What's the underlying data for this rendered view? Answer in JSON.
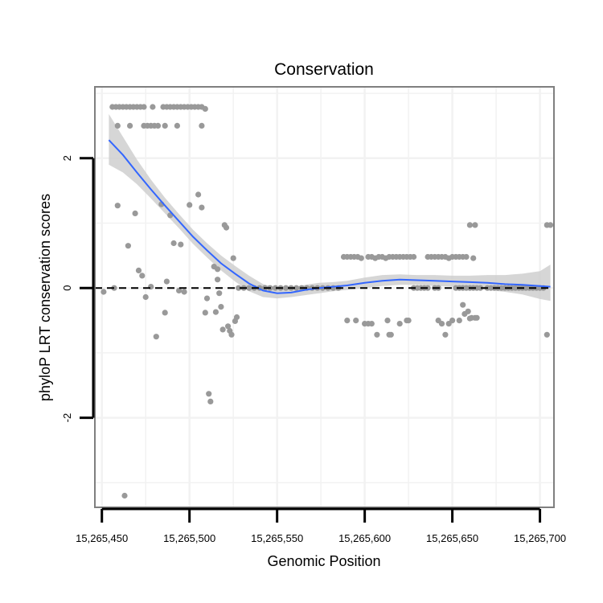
{
  "chart_data": {
    "type": "scatter",
    "title": "Conservation",
    "xlabel": "Genomic Position",
    "ylabel": "phyloP LRT conservation scores",
    "xlim": [
      15265446,
      15265708
    ],
    "ylim": [
      -3.38,
      3.1
    ],
    "xticks": [
      15265450,
      15265500,
      15265550,
      15265600,
      15265650,
      15265700
    ],
    "xtick_labels": [
      "15,265,450",
      "15,265,500",
      "15,265,550",
      "15,265,600",
      "15,265,650",
      "15,265,700"
    ],
    "yticks": [
      -2,
      0,
      2
    ],
    "ytick_labels": [
      "-2",
      "0",
      "2"
    ],
    "reference_line": {
      "y": 0,
      "style": "dashed",
      "color": "#000000"
    },
    "colors": {
      "points": "#999999",
      "smooth_line": "#3366ff",
      "confidence_band": "#cccccc",
      "panel_border": "#7f7f7f",
      "grid": "#f2f2f2"
    },
    "points": [
      {
        "x": 15265456,
        "y": 2.79
      },
      {
        "x": 15265458,
        "y": 2.79
      },
      {
        "x": 15265460,
        "y": 2.79
      },
      {
        "x": 15265462,
        "y": 2.79
      },
      {
        "x": 15265464,
        "y": 2.79
      },
      {
        "x": 15265466,
        "y": 2.79
      },
      {
        "x": 15265468,
        "y": 2.79
      },
      {
        "x": 15265470,
        "y": 2.79
      },
      {
        "x": 15265472,
        "y": 2.79
      },
      {
        "x": 15265474,
        "y": 2.79
      },
      {
        "x": 15265479,
        "y": 2.79
      },
      {
        "x": 15265485,
        "y": 2.79
      },
      {
        "x": 15265487,
        "y": 2.79
      },
      {
        "x": 15265489,
        "y": 2.79
      },
      {
        "x": 15265491,
        "y": 2.79
      },
      {
        "x": 15265493,
        "y": 2.79
      },
      {
        "x": 15265495,
        "y": 2.79
      },
      {
        "x": 15265497,
        "y": 2.79
      },
      {
        "x": 15265499,
        "y": 2.79
      },
      {
        "x": 15265501,
        "y": 2.79
      },
      {
        "x": 15265503,
        "y": 2.79
      },
      {
        "x": 15265505,
        "y": 2.79
      },
      {
        "x": 15265507,
        "y": 2.79
      },
      {
        "x": 15265509,
        "y": 2.76
      },
      {
        "x": 15265459,
        "y": 2.5
      },
      {
        "x": 15265466,
        "y": 2.5
      },
      {
        "x": 15265474,
        "y": 2.5
      },
      {
        "x": 15265476,
        "y": 2.5
      },
      {
        "x": 15265478,
        "y": 2.5
      },
      {
        "x": 15265480,
        "y": 2.5
      },
      {
        "x": 15265482,
        "y": 2.5
      },
      {
        "x": 15265486,
        "y": 2.5
      },
      {
        "x": 15265493,
        "y": 2.5
      },
      {
        "x": 15265507,
        "y": 2.5
      },
      {
        "x": 15265459,
        "y": 1.27
      },
      {
        "x": 15265465,
        "y": 0.65
      },
      {
        "x": 15265469,
        "y": 1.15
      },
      {
        "x": 15265471,
        "y": 0.27
      },
      {
        "x": 15265473,
        "y": 0.19
      },
      {
        "x": 15265475,
        "y": -0.14
      },
      {
        "x": 15265478,
        "y": 0.02
      },
      {
        "x": 15265481,
        "y": -0.75
      },
      {
        "x": 15265484,
        "y": 1.29
      },
      {
        "x": 15265486,
        "y": -0.38
      },
      {
        "x": 15265487,
        "y": 0.1
      },
      {
        "x": 15265489,
        "y": 1.12
      },
      {
        "x": 15265491,
        "y": 0.69
      },
      {
        "x": 15265494,
        "y": -0.04
      },
      {
        "x": 15265495,
        "y": 0.67
      },
      {
        "x": 15265497,
        "y": -0.06
      },
      {
        "x": 15265500,
        "y": 1.28
      },
      {
        "x": 15265505,
        "y": 1.44
      },
      {
        "x": 15265507,
        "y": 1.24
      },
      {
        "x": 15265509,
        "y": -0.38
      },
      {
        "x": 15265510,
        "y": -0.16
      },
      {
        "x": 15265511,
        "y": -1.63
      },
      {
        "x": 15265512,
        "y": -1.75
      },
      {
        "x": 15265514,
        "y": 0.33
      },
      {
        "x": 15265515,
        "y": -0.37
      },
      {
        "x": 15265516,
        "y": 0.29
      },
      {
        "x": 15265516,
        "y": 0.13
      },
      {
        "x": 15265517,
        "y": -0.08
      },
      {
        "x": 15265518,
        "y": -0.29
      },
      {
        "x": 15265519,
        "y": -0.64
      },
      {
        "x": 15265520,
        "y": 0.97
      },
      {
        "x": 15265521,
        "y": 0.93
      },
      {
        "x": 15265522,
        "y": -0.59
      },
      {
        "x": 15265523,
        "y": -0.66
      },
      {
        "x": 15265524,
        "y": -0.72
      },
      {
        "x": 15265525,
        "y": 0.46
      },
      {
        "x": 15265526,
        "y": -0.51
      },
      {
        "x": 15265527,
        "y": -0.45
      },
      {
        "x": 15265451,
        "y": -0.06
      },
      {
        "x": 15265457,
        "y": 0.0
      },
      {
        "x": 15265463,
        "y": -3.2
      },
      {
        "x": 15265528,
        "y": 0.0
      },
      {
        "x": 15265531,
        "y": 0.0
      },
      {
        "x": 15265534,
        "y": 0.0
      },
      {
        "x": 15265537,
        "y": 0.0
      },
      {
        "x": 15265540,
        "y": 0.0
      },
      {
        "x": 15265543,
        "y": 0.0
      },
      {
        "x": 15265546,
        "y": 0.0
      },
      {
        "x": 15265549,
        "y": 0.0
      },
      {
        "x": 15265552,
        "y": 0.0
      },
      {
        "x": 15265555,
        "y": 0.0
      },
      {
        "x": 15265558,
        "y": 0.0
      },
      {
        "x": 15265561,
        "y": 0.0
      },
      {
        "x": 15265564,
        "y": 0.0
      },
      {
        "x": 15265567,
        "y": 0.0
      },
      {
        "x": 15265570,
        "y": 0.0
      },
      {
        "x": 15265573,
        "y": 0.0
      },
      {
        "x": 15265576,
        "y": 0.0
      },
      {
        "x": 15265579,
        "y": 0.0
      },
      {
        "x": 15265582,
        "y": 0.0
      },
      {
        "x": 15265585,
        "y": 0.0
      },
      {
        "x": 15265588,
        "y": 0.48
      },
      {
        "x": 15265590,
        "y": 0.48
      },
      {
        "x": 15265592,
        "y": 0.48
      },
      {
        "x": 15265594,
        "y": 0.48
      },
      {
        "x": 15265596,
        "y": 0.48
      },
      {
        "x": 15265598,
        "y": 0.46
      },
      {
        "x": 15265602,
        "y": 0.48
      },
      {
        "x": 15265604,
        "y": 0.48
      },
      {
        "x": 15265606,
        "y": 0.46
      },
      {
        "x": 15265608,
        "y": 0.48
      },
      {
        "x": 15265610,
        "y": 0.48
      },
      {
        "x": 15265612,
        "y": 0.46
      },
      {
        "x": 15265614,
        "y": 0.48
      },
      {
        "x": 15265616,
        "y": 0.48
      },
      {
        "x": 15265618,
        "y": 0.48
      },
      {
        "x": 15265620,
        "y": 0.48
      },
      {
        "x": 15265622,
        "y": 0.48
      },
      {
        "x": 15265624,
        "y": 0.48
      },
      {
        "x": 15265626,
        "y": 0.48
      },
      {
        "x": 15265628,
        "y": 0.48
      },
      {
        "x": 15265636,
        "y": 0.48
      },
      {
        "x": 15265638,
        "y": 0.48
      },
      {
        "x": 15265640,
        "y": 0.48
      },
      {
        "x": 15265642,
        "y": 0.48
      },
      {
        "x": 15265644,
        "y": 0.48
      },
      {
        "x": 15265646,
        "y": 0.48
      },
      {
        "x": 15265648,
        "y": 0.46
      },
      {
        "x": 15265650,
        "y": 0.48
      },
      {
        "x": 15265652,
        "y": 0.48
      },
      {
        "x": 15265654,
        "y": 0.48
      },
      {
        "x": 15265656,
        "y": 0.48
      },
      {
        "x": 15265658,
        "y": 0.48
      },
      {
        "x": 15265662,
        "y": 0.46
      },
      {
        "x": 15265590,
        "y": -0.5
      },
      {
        "x": 15265595,
        "y": -0.5
      },
      {
        "x": 15265600,
        "y": -0.55
      },
      {
        "x": 15265602,
        "y": -0.55
      },
      {
        "x": 15265604,
        "y": -0.55
      },
      {
        "x": 15265607,
        "y": -0.72
      },
      {
        "x": 15265613,
        "y": -0.5
      },
      {
        "x": 15265614,
        "y": -0.72
      },
      {
        "x": 15265615,
        "y": -0.72
      },
      {
        "x": 15265620,
        "y": -0.55
      },
      {
        "x": 15265624,
        "y": -0.5
      },
      {
        "x": 15265625,
        "y": -0.5
      },
      {
        "x": 15265628,
        "y": 0.0
      },
      {
        "x": 15265630,
        "y": 0.0
      },
      {
        "x": 15265632,
        "y": 0.0
      },
      {
        "x": 15265634,
        "y": 0.0
      },
      {
        "x": 15265636,
        "y": 0.0
      },
      {
        "x": 15265640,
        "y": 0.0
      },
      {
        "x": 15265642,
        "y": 0.0
      },
      {
        "x": 15265652,
        "y": 0.0
      },
      {
        "x": 15265654,
        "y": 0.0
      },
      {
        "x": 15265656,
        "y": 0.0
      },
      {
        "x": 15265658,
        "y": 0.0
      },
      {
        "x": 15265660,
        "y": 0.0
      },
      {
        "x": 15265662,
        "y": 0.0
      },
      {
        "x": 15265664,
        "y": 0.0
      },
      {
        "x": 15265666,
        "y": 0.0
      },
      {
        "x": 15265670,
        "y": 0.0
      },
      {
        "x": 15265672,
        "y": 0.0
      },
      {
        "x": 15265674,
        "y": 0.0
      },
      {
        "x": 15265676,
        "y": 0.0
      },
      {
        "x": 15265678,
        "y": 0.0
      },
      {
        "x": 15265680,
        "y": 0.0
      },
      {
        "x": 15265682,
        "y": 0.0
      },
      {
        "x": 15265684,
        "y": 0.0
      },
      {
        "x": 15265686,
        "y": 0.0
      },
      {
        "x": 15265688,
        "y": 0.0
      },
      {
        "x": 15265690,
        "y": 0.0
      },
      {
        "x": 15265692,
        "y": 0.0
      },
      {
        "x": 15265694,
        "y": 0.0
      },
      {
        "x": 15265696,
        "y": 0.0
      },
      {
        "x": 15265698,
        "y": 0.0
      },
      {
        "x": 15265700,
        "y": 0.0
      },
      {
        "x": 15265702,
        "y": 0.0
      },
      {
        "x": 15265642,
        "y": -0.5
      },
      {
        "x": 15265644,
        "y": -0.55
      },
      {
        "x": 15265646,
        "y": -0.72
      },
      {
        "x": 15265648,
        "y": -0.55
      },
      {
        "x": 15265650,
        "y": -0.5
      },
      {
        "x": 15265654,
        "y": -0.5
      },
      {
        "x": 15265656,
        "y": -0.26
      },
      {
        "x": 15265657,
        "y": -0.4
      },
      {
        "x": 15265659,
        "y": -0.36
      },
      {
        "x": 15265660,
        "y": -0.47
      },
      {
        "x": 15265661,
        "y": -0.46
      },
      {
        "x": 15265663,
        "y": -0.46
      },
      {
        "x": 15265664,
        "y": -0.46
      },
      {
        "x": 15265660,
        "y": 0.97
      },
      {
        "x": 15265663,
        "y": 0.97
      },
      {
        "x": 15265704,
        "y": 0.97
      },
      {
        "x": 15265706,
        "y": 0.97
      },
      {
        "x": 15265704,
        "y": -0.72
      }
    ],
    "smooth": {
      "x": [
        15265454,
        15265462,
        15265470,
        15265478,
        15265486,
        15265494,
        15265502,
        15265510,
        15265518,
        15265526,
        15265534,
        15265542,
        15265550,
        15265558,
        15265566,
        15265574,
        15265582,
        15265590,
        15265600,
        15265610,
        15265620,
        15265630,
        15265640,
        15265650,
        15265660,
        15265670,
        15265680,
        15265690,
        15265700,
        15265706
      ],
      "y": [
        2.28,
        2.05,
        1.78,
        1.52,
        1.27,
        1.03,
        0.79,
        0.58,
        0.38,
        0.22,
        0.07,
        -0.04,
        -0.08,
        -0.07,
        -0.03,
        0.0,
        0.02,
        0.04,
        0.08,
        0.11,
        0.13,
        0.12,
        0.11,
        0.1,
        0.09,
        0.08,
        0.06,
        0.05,
        0.03,
        0.02
      ],
      "lower": [
        1.9,
        1.78,
        1.6,
        1.38,
        1.15,
        0.92,
        0.68,
        0.47,
        0.27,
        0.1,
        -0.05,
        -0.14,
        -0.16,
        -0.14,
        -0.11,
        -0.08,
        -0.05,
        -0.03,
        0.0,
        0.03,
        0.05,
        0.05,
        0.03,
        0.02,
        0.0,
        -0.03,
        -0.06,
        -0.1,
        -0.17,
        -0.2
      ],
      "upper": [
        2.68,
        2.33,
        1.98,
        1.67,
        1.39,
        1.14,
        0.9,
        0.69,
        0.5,
        0.34,
        0.19,
        0.06,
        0.0,
        0.0,
        0.05,
        0.08,
        0.09,
        0.11,
        0.16,
        0.2,
        0.21,
        0.2,
        0.2,
        0.19,
        0.19,
        0.2,
        0.2,
        0.22,
        0.26,
        0.36
      ]
    }
  }
}
